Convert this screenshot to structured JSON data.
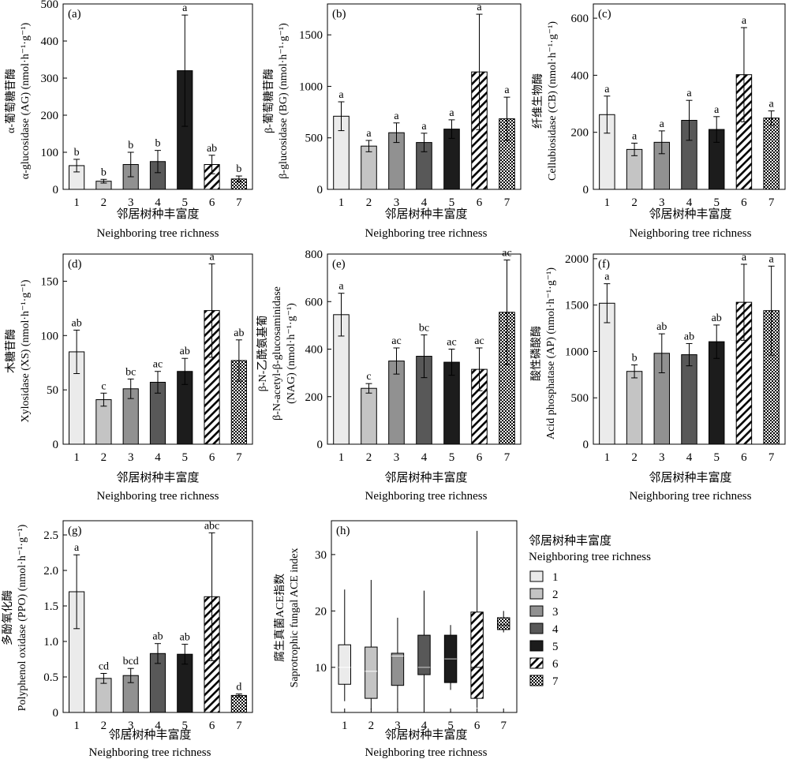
{
  "x_labels": [
    "1",
    "2",
    "3",
    "4",
    "5",
    "6",
    "7"
  ],
  "xlabel_cn": "邻居树种丰富度",
  "xlabel_en": "Neighboring tree richness",
  "legend": {
    "title_cn": "邻居树种丰富度",
    "title_en": "Neighboring tree richness",
    "items": [
      "1",
      "2",
      "3",
      "4",
      "5",
      "6",
      "7"
    ]
  },
  "fills": [
    "#ebebeb",
    "#c4c4c4",
    "#919191",
    "#585858",
    "#1c1c1c",
    "hatch",
    "checker"
  ],
  "chart_data": [
    {
      "type": "bar",
      "panel": "(a)",
      "ylabel_cn": "α-葡萄糖苷酶",
      "ylabel_en": "α-glucosidase (AG) (nmol·h⁻¹·g⁻¹)",
      "ylim": [
        0,
        500
      ],
      "yticks": [
        0,
        100,
        200,
        300,
        400,
        500
      ],
      "values": [
        64,
        22,
        67,
        75,
        320,
        67,
        28
      ],
      "errors": [
        17,
        5,
        33,
        30,
        150,
        25,
        8
      ],
      "letters": [
        "b",
        "b",
        "b",
        "b",
        "a",
        "ab",
        "b"
      ]
    },
    {
      "type": "bar",
      "panel": "(b)",
      "ylabel_cn": "β-葡萄糖苷酶",
      "ylabel_en": "β-glucosidase (BG) (nmol·h⁻¹·g⁻¹)",
      "ylim": [
        0,
        1800
      ],
      "yticks": [
        0,
        500,
        1000,
        1500
      ],
      "values": [
        710,
        420,
        550,
        455,
        585,
        1140,
        685
      ],
      "errors": [
        140,
        55,
        95,
        90,
        90,
        560,
        210
      ],
      "letters": [
        "a",
        "a",
        "a",
        "a",
        "a",
        "a",
        "a"
      ]
    },
    {
      "type": "bar",
      "panel": "(c)",
      "ylabel_cn": "纤维生物酶",
      "ylabel_en": "Cellubiosidase (CB) (nmol·h⁻¹·g⁻¹)",
      "ylim": [
        0,
        650
      ],
      "yticks": [
        0,
        200,
        400,
        600
      ],
      "values": [
        262,
        140,
        165,
        242,
        210,
        402,
        250
      ],
      "errors": [
        65,
        22,
        40,
        70,
        45,
        165,
        25
      ],
      "letters": [
        "a",
        "a",
        "a",
        "a",
        "a",
        "a",
        "a"
      ]
    },
    {
      "type": "bar",
      "panel": "(d)",
      "ylabel_cn": "木糖苷酶",
      "ylabel_en": "Xylosidase (XS) (nmol·h⁻¹·g⁻¹)",
      "ylim": [
        0,
        175
      ],
      "yticks": [
        0,
        50,
        100,
        150
      ],
      "values": [
        85,
        41,
        51,
        57,
        67,
        123,
        77
      ],
      "errors": [
        20,
        6,
        9,
        10,
        12,
        43,
        19
      ],
      "letters": [
        "ab",
        "c",
        "bc",
        "ac",
        "ab",
        "a",
        "ab"
      ]
    },
    {
      "type": "bar",
      "panel": "(e)",
      "ylabel_cn": "β-N-乙酰氨基葡",
      "ylabel_en1": "β-N-acetyl-β-glucosaminidase",
      "ylabel_en2": "(NAG) (nmol·h⁻¹·g⁻¹)",
      "ylim": [
        0,
        800
      ],
      "yticks": [
        0,
        200,
        400,
        600,
        800
      ],
      "values": [
        545,
        235,
        350,
        370,
        345,
        315,
        555
      ],
      "errors": [
        90,
        20,
        55,
        90,
        55,
        90,
        220
      ],
      "letters": [
        "a",
        "c",
        "ac",
        "bc",
        "ac",
        "ac",
        "ac"
      ]
    },
    {
      "type": "bar",
      "panel": "(f)",
      "ylabel_cn": "酸性磷酸酶",
      "ylabel_en": "Acid phosphatase (AP) (nmol·h⁻¹·g⁻¹)",
      "ylim": [
        0,
        2050
      ],
      "yticks": [
        0,
        500,
        1000,
        1500,
        2000
      ],
      "values": [
        1520,
        785,
        980,
        965,
        1105,
        1530,
        1440
      ],
      "errors": [
        210,
        70,
        210,
        120,
        180,
        410,
        480
      ],
      "letters": [
        "a",
        "b",
        "ab",
        "ab",
        "ab",
        "a",
        "a"
      ]
    },
    {
      "type": "bar",
      "panel": "(g)",
      "ylabel_cn": "多酚氧化酶",
      "ylabel_en": "Polyphenol oxidase (PPO) (nmol·h⁻¹·g⁻¹)",
      "ylim": [
        0,
        2.7
      ],
      "yticks": [
        "0",
        "0.5",
        "1.0",
        "1.5",
        "2.0",
        "2.5"
      ],
      "values": [
        1.7,
        0.48,
        0.52,
        0.83,
        0.82,
        1.63,
        0.24
      ],
      "errors": [
        0.52,
        0.07,
        0.1,
        0.14,
        0.14,
        0.9,
        0.02
      ],
      "letters": [
        "a",
        "cd",
        "bcd",
        "ab",
        "ab",
        "abc",
        "d"
      ]
    },
    {
      "type": "box",
      "panel": "(h)",
      "ylabel_cn": "腐生真菌ACE指数",
      "ylabel_en": "Saprotrophic fungal ACE index",
      "ylim": [
        2,
        36
      ],
      "yticks": [
        10,
        20,
        30
      ],
      "boxes": [
        {
          "min": 4.0,
          "q1": 7.0,
          "median": 10.0,
          "q3": 14.0,
          "max": 23.8
        },
        {
          "min": 2.5,
          "q1": 4.5,
          "median": 9.3,
          "q3": 13.6,
          "max": 25.5
        },
        {
          "min": 2.5,
          "q1": 6.8,
          "median": 12.0,
          "q3": 12.5,
          "max": 18.8
        },
        {
          "min": 2.5,
          "q1": 8.7,
          "median": 10.0,
          "q3": 15.7,
          "max": 23.6
        },
        {
          "min": 6.0,
          "q1": 7.3,
          "median": 11.5,
          "q3": 15.7,
          "max": 17.5
        },
        {
          "min": 2.8,
          "q1": 4.5,
          "median": 10.0,
          "q3": 19.8,
          "max": 34.2
        },
        {
          "min": 16.2,
          "q1": 16.7,
          "median": 17.5,
          "q3": 18.8,
          "max": 20.0
        }
      ]
    }
  ]
}
